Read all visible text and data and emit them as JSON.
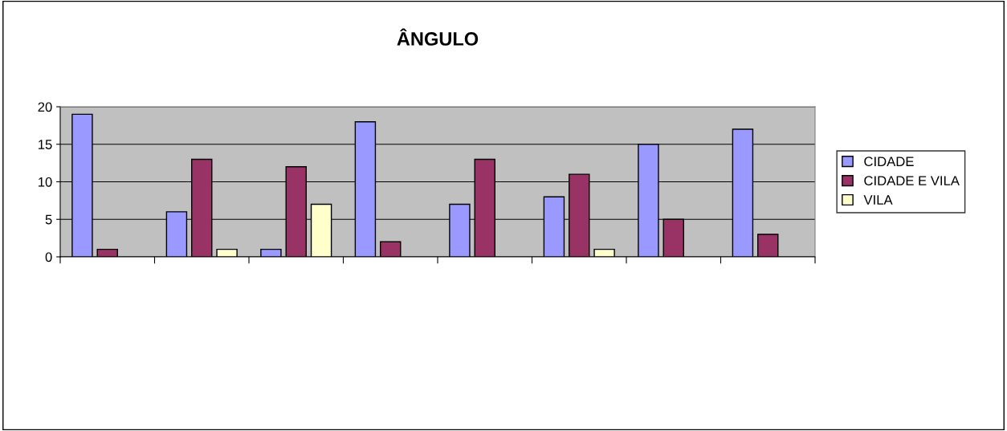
{
  "chart_data": {
    "type": "bar",
    "title": "ÂNGULO",
    "categories": [
      null,
      null,
      null,
      null,
      null,
      null,
      null,
      null
    ],
    "series": [
      {
        "name": "CIDADE",
        "color": "#9999ff",
        "values": [
          19,
          6,
          1,
          18,
          7,
          8,
          15,
          17
        ]
      },
      {
        "name": "CIDADE E VILA",
        "color": "#993366",
        "values": [
          1,
          13,
          12,
          2,
          13,
          11,
          5,
          3
        ]
      },
      {
        "name": "VILA",
        "color": "#ffffcc",
        "values": [
          null,
          1,
          7,
          null,
          null,
          1,
          null,
          null
        ]
      }
    ],
    "ylim": [
      0,
      20
    ],
    "yticks": [
      0,
      5,
      10,
      15,
      20
    ],
    "grid": "y",
    "legend": "right",
    "tick_labels": "y"
  }
}
